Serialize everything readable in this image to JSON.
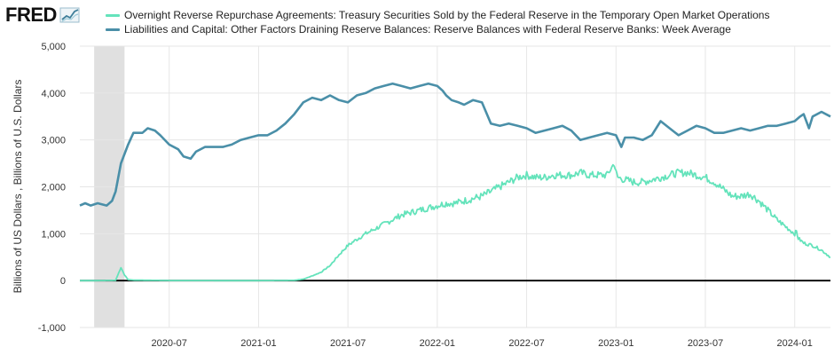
{
  "logo": {
    "text": "FRED"
  },
  "colors": {
    "series_rrp": "#64e3bb",
    "series_reserves": "#4a8fa8",
    "grid": "#e6e6e6",
    "recession": "#e0e0e0",
    "zero_line": "#000000",
    "axis_text": "#333333"
  },
  "chart_data": {
    "type": "line",
    "title": "",
    "xlabel": "",
    "ylabel": "Billions of US Dollars , Billions of U.S. Dollars",
    "ylim": [
      -1000,
      5000
    ],
    "y_ticks": [
      {
        "value": 5000,
        "label": "5,000"
      },
      {
        "value": 4000,
        "label": "4,000"
      },
      {
        "value": 3000,
        "label": "3,000"
      },
      {
        "value": 2000,
        "label": "2,000"
      },
      {
        "value": 1000,
        "label": "1,000"
      },
      {
        "value": 0,
        "label": "0"
      },
      {
        "value": -1000,
        "label": "-1,000"
      }
    ],
    "x_range": [
      2020.0,
      2024.2
    ],
    "x_ticks": [
      {
        "value": 2020.5,
        "label": "2020-07"
      },
      {
        "value": 2021.0,
        "label": "2021-01"
      },
      {
        "value": 2021.5,
        "label": "2021-07"
      },
      {
        "value": 2022.0,
        "label": "2022-01"
      },
      {
        "value": 2022.5,
        "label": "2022-07"
      },
      {
        "value": 2023.0,
        "label": "2023-01"
      },
      {
        "value": 2023.5,
        "label": "2023-07"
      },
      {
        "value": 2024.0,
        "label": "2024-01"
      }
    ],
    "recession": {
      "start": 2020.08,
      "end": 2020.25
    },
    "grid": true,
    "legend_position": "top",
    "series": [
      {
        "name": "Overnight Reverse Repurchase Agreements: Treasury Securities Sold by the Federal Reserve in the Temporary Open Market Operations",
        "key": "rrp",
        "x": [
          2020.0,
          2020.1,
          2020.2,
          2020.23,
          2020.25,
          2020.27,
          2020.3,
          2020.5,
          2020.8,
          2021.0,
          2021.2,
          2021.25,
          2021.3,
          2021.35,
          2021.4,
          2021.45,
          2021.5,
          2021.55,
          2021.6,
          2021.65,
          2021.7,
          2021.75,
          2021.8,
          2021.85,
          2021.9,
          2021.95,
          2022.0,
          2022.05,
          2022.1,
          2022.15,
          2022.2,
          2022.25,
          2022.3,
          2022.35,
          2022.4,
          2022.45,
          2022.5,
          2022.55,
          2022.6,
          2022.65,
          2022.7,
          2022.75,
          2022.8,
          2022.85,
          2022.9,
          2022.95,
          2022.99,
          2023.0,
          2023.01,
          2023.05,
          2023.1,
          2023.15,
          2023.2,
          2023.25,
          2023.3,
          2023.35,
          2023.4,
          2023.45,
          2023.5,
          2023.55,
          2023.6,
          2023.65,
          2023.7,
          2023.75,
          2023.8,
          2023.85,
          2023.9,
          2023.95,
          2024.0,
          2024.01,
          2024.02,
          2024.05,
          2024.1,
          2024.15,
          2024.2
        ],
        "values": [
          0,
          0,
          5,
          280,
          120,
          20,
          10,
          2,
          0,
          0,
          5,
          30,
          100,
          180,
          320,
          550,
          750,
          880,
          1000,
          1100,
          1200,
          1300,
          1400,
          1450,
          1500,
          1550,
          1600,
          1650,
          1650,
          1700,
          1750,
          1800,
          1900,
          2000,
          2100,
          2200,
          2250,
          2200,
          2200,
          2250,
          2250,
          2250,
          2300,
          2250,
          2250,
          2250,
          2500,
          2300,
          2200,
          2150,
          2100,
          2100,
          2150,
          2200,
          2250,
          2300,
          2300,
          2250,
          2200,
          2100,
          1950,
          1800,
          1800,
          1850,
          1700,
          1500,
          1300,
          1150,
          1000,
          1050,
          900,
          800,
          750,
          650,
          500
        ]
      },
      {
        "name": "Liabilities and Capital: Other Factors Draining Reserve Balances: Reserve Balances with Federal Reserve Banks: Week Average",
        "key": "reserves",
        "x": [
          2020.0,
          2020.03,
          2020.06,
          2020.1,
          2020.15,
          2020.18,
          2020.2,
          2020.23,
          2020.27,
          2020.3,
          2020.35,
          2020.38,
          2020.42,
          2020.45,
          2020.5,
          2020.55,
          2020.58,
          2020.62,
          2020.65,
          2020.7,
          2020.75,
          2020.8,
          2020.85,
          2020.9,
          2020.95,
          2021.0,
          2021.05,
          2021.1,
          2021.15,
          2021.2,
          2021.25,
          2021.3,
          2021.35,
          2021.4,
          2021.45,
          2021.5,
          2021.55,
          2021.6,
          2021.65,
          2021.7,
          2021.75,
          2021.8,
          2021.85,
          2021.9,
          2021.95,
          2022.0,
          2022.03,
          2022.05,
          2022.08,
          2022.12,
          2022.15,
          2022.2,
          2022.25,
          2022.3,
          2022.35,
          2022.4,
          2022.45,
          2022.5,
          2022.55,
          2022.6,
          2022.65,
          2022.7,
          2022.75,
          2022.8,
          2022.85,
          2022.9,
          2022.95,
          2023.0,
          2023.03,
          2023.05,
          2023.1,
          2023.15,
          2023.2,
          2023.25,
          2023.3,
          2023.35,
          2023.4,
          2023.45,
          2023.5,
          2023.55,
          2023.6,
          2023.65,
          2023.7,
          2023.75,
          2023.8,
          2023.85,
          2023.9,
          2023.95,
          2024.0,
          2024.03,
          2024.05,
          2024.08,
          2024.1,
          2024.15,
          2024.2
        ],
        "values": [
          1600,
          1650,
          1600,
          1650,
          1600,
          1700,
          1900,
          2500,
          2900,
          3150,
          3150,
          3250,
          3200,
          3100,
          2900,
          2800,
          2650,
          2600,
          2750,
          2850,
          2850,
          2850,
          2900,
          3000,
          3050,
          3100,
          3100,
          3200,
          3350,
          3550,
          3800,
          3900,
          3850,
          3950,
          3850,
          3800,
          3950,
          4000,
          4100,
          4150,
          4200,
          4150,
          4100,
          4150,
          4200,
          4150,
          4050,
          3950,
          3850,
          3800,
          3750,
          3850,
          3800,
          3350,
          3300,
          3350,
          3300,
          3250,
          3150,
          3200,
          3250,
          3300,
          3200,
          3000,
          3050,
          3100,
          3150,
          3100,
          2850,
          3050,
          3050,
          3000,
          3100,
          3400,
          3250,
          3100,
          3200,
          3300,
          3250,
          3150,
          3150,
          3200,
          3250,
          3200,
          3250,
          3300,
          3300,
          3350,
          3400,
          3500,
          3550,
          3250,
          3500,
          3600,
          3500
        ]
      }
    ]
  }
}
